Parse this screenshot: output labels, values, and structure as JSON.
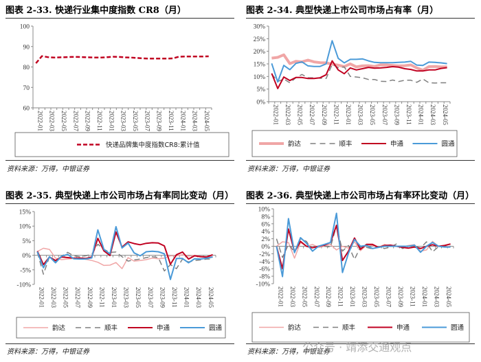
{
  "colors": {
    "yunda": "#f0a6a6",
    "sf": "#7f7f7f",
    "sto": "#c00020",
    "zto": "#4a9ad8",
    "cr8": "#c00020"
  },
  "source": "资料来源：万得，中银证券",
  "watermark": "公众号 · 靖添交通观点",
  "chart_data": [
    {
      "id": "c33",
      "type": "line",
      "title": "图表 2-33. 快递行业集中度指数 CR8（月）",
      "x_tick_labels": [
        "2022-01",
        "2022-03",
        "2022-05",
        "2022-07",
        "2022-09",
        "2022-11",
        "2023-01",
        "2023-03",
        "2023-05",
        "2023-07",
        "2023-09",
        "2023-11",
        "2024-01",
        "2024-03",
        "2024-05"
      ],
      "ylim": [
        60,
        100
      ],
      "yticks": [
        "60",
        "70",
        "80",
        "90",
        "100"
      ],
      "ytick_values": [
        60,
        70,
        80,
        90,
        100
      ],
      "legend": "bottom",
      "series": [
        {
          "name": "快递品牌集中度指数CR8:累计值",
          "key": "cr8",
          "dash": true,
          "values": [
            81.8,
            85.3,
            84.8,
            84.6,
            84.7,
            84.8,
            84.9,
            84.9,
            84.8,
            84.7,
            84.6,
            84.6,
            84.8,
            85.0,
            84.9,
            84.7,
            84.6,
            84.4,
            84.2,
            84.1,
            84.1,
            84.1,
            84.1,
            84.2,
            85.0,
            85.1,
            85.1,
            85.1,
            85.1,
            85.2
          ]
        }
      ]
    },
    {
      "id": "c34",
      "type": "line",
      "title": "图表 2-34. 典型快递上市公司市场占有率（月）",
      "x_tick_labels": [
        "2022-01",
        "2022-03",
        "2022-05",
        "2022-07",
        "2022-09",
        "2022-11",
        "2023-01",
        "2023-03",
        "2023-05",
        "2023-07",
        "2023-09",
        "2023-11",
        "2024-01",
        "2024-03",
        "2024-05"
      ],
      "ylim": [
        0,
        30
      ],
      "yticks": [
        "0%",
        "5%",
        "10%",
        "15%",
        "20%",
        "25%",
        "30%"
      ],
      "ytick_values": [
        0,
        5,
        10,
        15,
        20,
        25,
        30
      ],
      "legend": "bottom",
      "series": [
        {
          "name": "韵达",
          "key": "yunda",
          "values": [
            17.3,
            17.6,
            18.6,
            15.1,
            16.0,
            15.8,
            16.5,
            15.8,
            15.5,
            15.4,
            14.9,
            14.5,
            13.9,
            15.0,
            13.8,
            14.2,
            14.3,
            14.0,
            14.6,
            14.6,
            14.4,
            14.2,
            14.3,
            14.6,
            13.4,
            12.5,
            13.9,
            14.0,
            13.8,
            13.8
          ]
        },
        {
          "name": "顺丰",
          "key": "sf",
          "dash": true,
          "values": [
            11.0,
            8.0,
            9.0,
            7.5,
            9.5,
            10.8,
            9.5,
            9.5,
            9.3,
            9.2,
            14.8,
            13.5,
            13.8,
            10.0,
            9.8,
            9.5,
            8.8,
            8.8,
            8.1,
            8.0,
            8.6,
            8.0,
            8.5,
            8.5,
            7.7,
            9.0,
            7.5,
            7.4,
            7.5,
            7.5
          ]
        },
        {
          "name": "申通",
          "key": "sto",
          "values": [
            11.2,
            5.2,
            9.8,
            8.4,
            9.6,
            9.6,
            9.2,
            9.2,
            9.5,
            10.7,
            16.2,
            12.6,
            11.1,
            13.4,
            12.6,
            13.1,
            13.6,
            13.3,
            13.4,
            13.6,
            13.9,
            13.7,
            13.1,
            12.8,
            12.2,
            12.2,
            12.6,
            12.6,
            13.2,
            13.5
          ]
        },
        {
          "name": "圆通",
          "key": "zto",
          "values": [
            15.2,
            7.8,
            14.4,
            12.7,
            15.2,
            15.8,
            14.2,
            14.0,
            14.0,
            15.0,
            24.2,
            17.2,
            15.4,
            16.8,
            16.8,
            17.0,
            16.2,
            15.6,
            15.5,
            15.5,
            15.5,
            15.6,
            15.7,
            16.0,
            14.5,
            14.4,
            15.7,
            15.6,
            15.4,
            15.1
          ]
        }
      ]
    },
    {
      "id": "c35",
      "type": "line",
      "title": "图表 2-35. 典型快递上市公司市场占有率同比变动（月）",
      "x_tick_labels": [
        "2022-01",
        "2022-03",
        "2022-05",
        "2022-07",
        "2022-09",
        "2022-11",
        "2023-01",
        "2023-03",
        "2023-05",
        "2023-07",
        "2023-09",
        "2023-11",
        "2024-01",
        "2024-03",
        "2024-05"
      ],
      "ylim": [
        -10,
        15
      ],
      "yticks": [
        "-10%",
        "-5%",
        "0%",
        "5%",
        "10%",
        "15%"
      ],
      "ytick_values": [
        -10,
        -5,
        0,
        5,
        10,
        15
      ],
      "legend": "bottom",
      "series": [
        {
          "name": "韵达",
          "key": "yunda",
          "values": [
            1.3,
            2.4,
            2.0,
            -1.0,
            -1.5,
            -1.3,
            -1.1,
            -1.0,
            -1.4,
            -1.8,
            -2.4,
            -3.5,
            -3.4,
            -2.5,
            -4.6,
            -0.8,
            -2.0,
            -1.8,
            -1.5,
            -1.0,
            -1.2,
            -1.0,
            -0.2,
            -0.2,
            0.2,
            -0.3,
            0.0,
            -0.3,
            -0.5,
            -0.5
          ]
        },
        {
          "name": "顺丰",
          "key": "sf",
          "dash": true,
          "values": [
            1.0,
            -6.5,
            -0.5,
            -2.0,
            -0.3,
            1.0,
            -0.2,
            -0.5,
            -0.2,
            0.4,
            3.8,
            2.0,
            1.0,
            1.1,
            -0.5,
            -2.0,
            -1.6,
            -1.3,
            -0.8,
            -0.5,
            -0.8,
            -5.4,
            -3.2,
            -4.6,
            -1.3,
            -2.3,
            -1.8,
            -1.6,
            -1.3,
            -1.3
          ]
        },
        {
          "name": "申通",
          "key": "sto",
          "values": [
            1.4,
            -3.2,
            -0.6,
            -1.8,
            -0.6,
            -0.8,
            -1.0,
            -1.0,
            -1.1,
            -0.6,
            5.8,
            1.5,
            -0.1,
            8.0,
            2.8,
            4.6,
            4.0,
            3.6,
            4.1,
            4.3,
            4.2,
            3.2,
            -3.1,
            0.2,
            1.1,
            -1.3,
            -0.2,
            -0.5,
            -0.6,
            0.2
          ]
        },
        {
          "name": "圆通",
          "key": "zto",
          "values": [
            1.2,
            -4.3,
            -0.5,
            -2.6,
            -0.3,
            0.3,
            -1.2,
            -1.3,
            -1.3,
            -0.9,
            8.7,
            2.0,
            0.5,
            9.8,
            2.5,
            4.2,
            0.8,
            -0.2,
            1.2,
            1.4,
            1.2,
            0.5,
            -8.3,
            -1.1,
            -1.1,
            -2.6,
            -1.2,
            -1.3,
            -1.0,
            -0.6
          ]
        }
      ]
    },
    {
      "id": "c36",
      "type": "line",
      "title": "图表 2-36. 典型快递上市公司市场占有率环比变动（月）",
      "x_tick_labels": [
        "2022-01",
        "2022-03",
        "2022-05",
        "2022-07",
        "2022-09",
        "2022-11",
        "2023-01",
        "2023-03",
        "2023-05",
        "2023-07",
        "2023-09",
        "2023-11",
        "2024-01",
        "2024-03",
        "2024-05"
      ],
      "ylim": [
        -10,
        10
      ],
      "yticks": [
        "-10%",
        "-8%",
        "-6%",
        "-4%",
        "-2%",
        "0%",
        "2%",
        "4%",
        "6%",
        "8%",
        "10%"
      ],
      "ytick_values": [
        -10,
        -8,
        -6,
        -4,
        -2,
        0,
        2,
        4,
        6,
        8,
        10
      ],
      "legend": "bottom",
      "series": [
        {
          "name": "韵达",
          "key": "yunda",
          "values": [
            0,
            1.2,
            1.0,
            -3.2,
            1.0,
            0,
            0.5,
            -0.3,
            0,
            0.5,
            -1.0,
            0,
            -0.5,
            1.2,
            -1.2,
            0.3,
            0.2,
            -0.3,
            0.5,
            0,
            0,
            -0.2,
            0.2,
            0.4,
            -1.3,
            -1.0,
            1.3,
            0,
            0,
            0
          ]
        },
        {
          "name": "顺丰",
          "key": "sf",
          "dash": true,
          "values": [
            2.0,
            -3.0,
            0.5,
            -1.5,
            2.0,
            1.3,
            -1.3,
            0,
            0,
            -0.2,
            5.6,
            -1.3,
            0.2,
            -3.5,
            -0.2,
            -0.3,
            -0.7,
            -0.1,
            -0.6,
            -0.2,
            0.6,
            -0.6,
            0,
            0,
            -0.5,
            1.2,
            -1.5,
            -0.1,
            0,
            0
          ]
        },
        {
          "name": "申通",
          "key": "sto",
          "values": [
            0,
            -6.0,
            4.6,
            -1.5,
            1.3,
            0,
            -0.4,
            0,
            0.3,
            1.0,
            5.6,
            -3.8,
            -1.3,
            2.2,
            -0.8,
            0.5,
            0.5,
            -0.3,
            0.2,
            0.3,
            0,
            -0.3,
            -0.5,
            -0.2,
            -0.6,
            0,
            0.4,
            0,
            0.2,
            0.6
          ]
        },
        {
          "name": "圆通",
          "key": "zto",
          "values": [
            0,
            -8.1,
            7.4,
            -1.7,
            2.3,
            0.8,
            -1.3,
            0,
            0.5,
            1.0,
            8.8,
            -7.0,
            -1.8,
            1.8,
            0,
            0.2,
            -0.6,
            -0.3,
            0,
            0,
            0,
            0,
            0,
            0.3,
            -1.6,
            0,
            1.0,
            0,
            -0.2,
            -0.2
          ]
        }
      ]
    }
  ]
}
